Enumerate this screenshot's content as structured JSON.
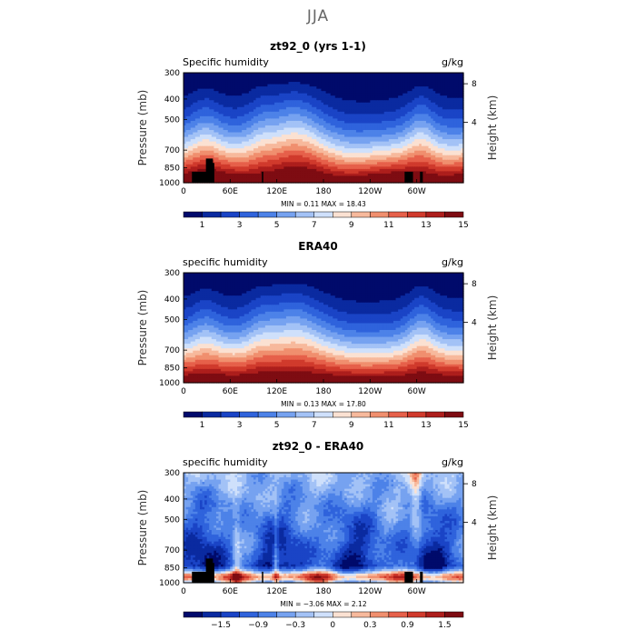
{
  "figure": {
    "title": "JJA"
  },
  "chart_data": [
    {
      "type": "heatmap",
      "title": "zt92_0 (yrs 1-1)",
      "left_label": "Specific humidity",
      "units": "g/kg",
      "ylabel": "Pressure (mb)",
      "ylabel_right": "Height (km)",
      "yticks": [
        "300",
        "400",
        "500",
        "700",
        "850",
        "1000"
      ],
      "yticks_right": [
        "8",
        "4"
      ],
      "xticks": [
        "0",
        "60E",
        "120E",
        "180",
        "120W",
        "60W"
      ],
      "stats": "MIN =    0.11   MAX =   18.43",
      "colorbar_labels": [
        "1",
        "3",
        "5",
        "7",
        "9",
        "11",
        "13",
        "15"
      ],
      "colorbar": [
        "#000a6b",
        "#0a2aa0",
        "#1a44c6",
        "#2f63dc",
        "#4d82e8",
        "#76a2f0",
        "#a3c2f6",
        "#cfe0fb",
        "#fbe1d2",
        "#f7b99c",
        "#f08f6e",
        "#e6604a",
        "#d03a2c",
        "#ad1e1c",
        "#7e0c12"
      ],
      "field": "model"
    },
    {
      "type": "heatmap",
      "title": "ERA40",
      "left_label": "specific humidity",
      "units": "g/kg",
      "ylabel": "Pressure (mb)",
      "ylabel_right": "Height (km)",
      "yticks": [
        "300",
        "400",
        "500",
        "700",
        "850",
        "1000"
      ],
      "yticks_right": [
        "8",
        "4"
      ],
      "xticks": [
        "0",
        "60E",
        "120E",
        "180",
        "120W",
        "60W"
      ],
      "stats": "MIN =    0.13   MAX =   17.80",
      "colorbar_labels": [
        "1",
        "3",
        "5",
        "7",
        "9",
        "11",
        "13",
        "15"
      ],
      "colorbar": [
        "#000a6b",
        "#0a2aa0",
        "#1a44c6",
        "#2f63dc",
        "#4d82e8",
        "#76a2f0",
        "#a3c2f6",
        "#cfe0fb",
        "#fbe1d2",
        "#f7b99c",
        "#f08f6e",
        "#e6604a",
        "#d03a2c",
        "#ad1e1c",
        "#7e0c12"
      ],
      "field": "obs"
    },
    {
      "type": "heatmap",
      "title": "zt92_0 - ERA40",
      "left_label": "specific humidity",
      "units": "g/kg",
      "ylabel": "Pressure (mb)",
      "ylabel_right": "Height (km)",
      "yticks": [
        "300",
        "400",
        "500",
        "700",
        "850",
        "1000"
      ],
      "yticks_right": [
        "8",
        "4"
      ],
      "xticks": [
        "0",
        "60E",
        "120E",
        "180",
        "120W",
        "60W"
      ],
      "stats": "MIN =  −3.06   MAX =    2.12",
      "colorbar_labels": [
        "−1.5",
        "−0.9",
        "−0.3",
        "0",
        "0.3",
        "0.9",
        "1.5"
      ],
      "colorbar": [
        "#000a6b",
        "#0a2aa0",
        "#1a44c6",
        "#2f63dc",
        "#4d82e8",
        "#76a2f0",
        "#a3c2f6",
        "#cfe0fb",
        "#fbe1d2",
        "#f7b99c",
        "#f08f6e",
        "#e6604a",
        "#d03a2c",
        "#ad1e1c",
        "#7e0c12"
      ],
      "field": "diff"
    }
  ]
}
